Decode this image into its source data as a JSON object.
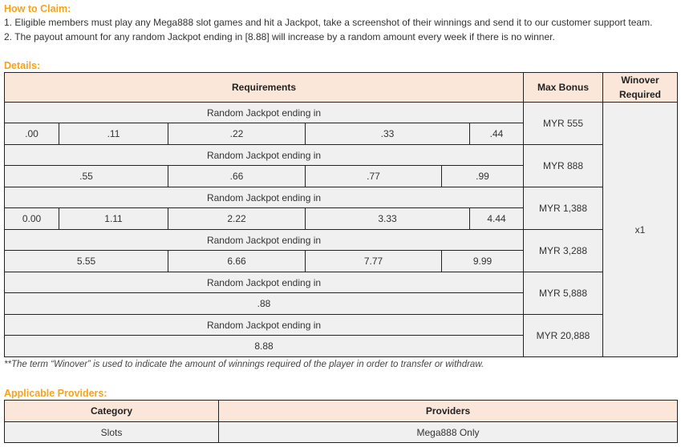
{
  "how_to_claim": {
    "title": "How to Claim:",
    "items": [
      "1. Eligible members must play any Mega888 slot games and hit a Jackpot, take a screenshot of their winnings and send it to our customer support team.",
      "2. The payout amount for any random Jackpot ending in [8.88] will increase by a random amount every week if there is no winner."
    ]
  },
  "details": {
    "title": "Details:",
    "headers": {
      "requirements": "Requirements",
      "max_bonus": "Max Bonus",
      "winover": "Winover Required"
    },
    "winover_value": "x1",
    "groups": [
      {
        "label": "Random Jackpot ending in",
        "values": [
          ".00",
          ".11",
          ".22",
          ".33",
          ".44"
        ],
        "max_bonus": "MYR 555"
      },
      {
        "label": "Random Jackpot ending in",
        "values": [
          ".55",
          ".66",
          ".77",
          ".99"
        ],
        "max_bonus": "MYR 888"
      },
      {
        "label": "Random Jackpot ending in",
        "values": [
          "0.00",
          "1.11",
          "2.22",
          "3.33",
          "4.44"
        ],
        "max_bonus": "MYR 1,388"
      },
      {
        "label": "Random Jackpot ending in",
        "values": [
          "5.55",
          "6.66",
          "7.77",
          "9.99"
        ],
        "max_bonus": "MYR 3,288"
      },
      {
        "label": "Random Jackpot ending in",
        "values": [
          ".88"
        ],
        "max_bonus": "MYR 5,888"
      },
      {
        "label": "Random Jackpot ending in",
        "values": [
          "8.88"
        ],
        "max_bonus": "MYR 20,888"
      }
    ],
    "note": "**The term “Winover” is used to indicate the amount of winnings required of the player in order to transfer or withdraw."
  },
  "providers": {
    "title": "Applicable Providers:",
    "headers": [
      "Category",
      "Providers"
    ],
    "rows": [
      [
        "Slots",
        "Mega888 Only"
      ]
    ]
  }
}
